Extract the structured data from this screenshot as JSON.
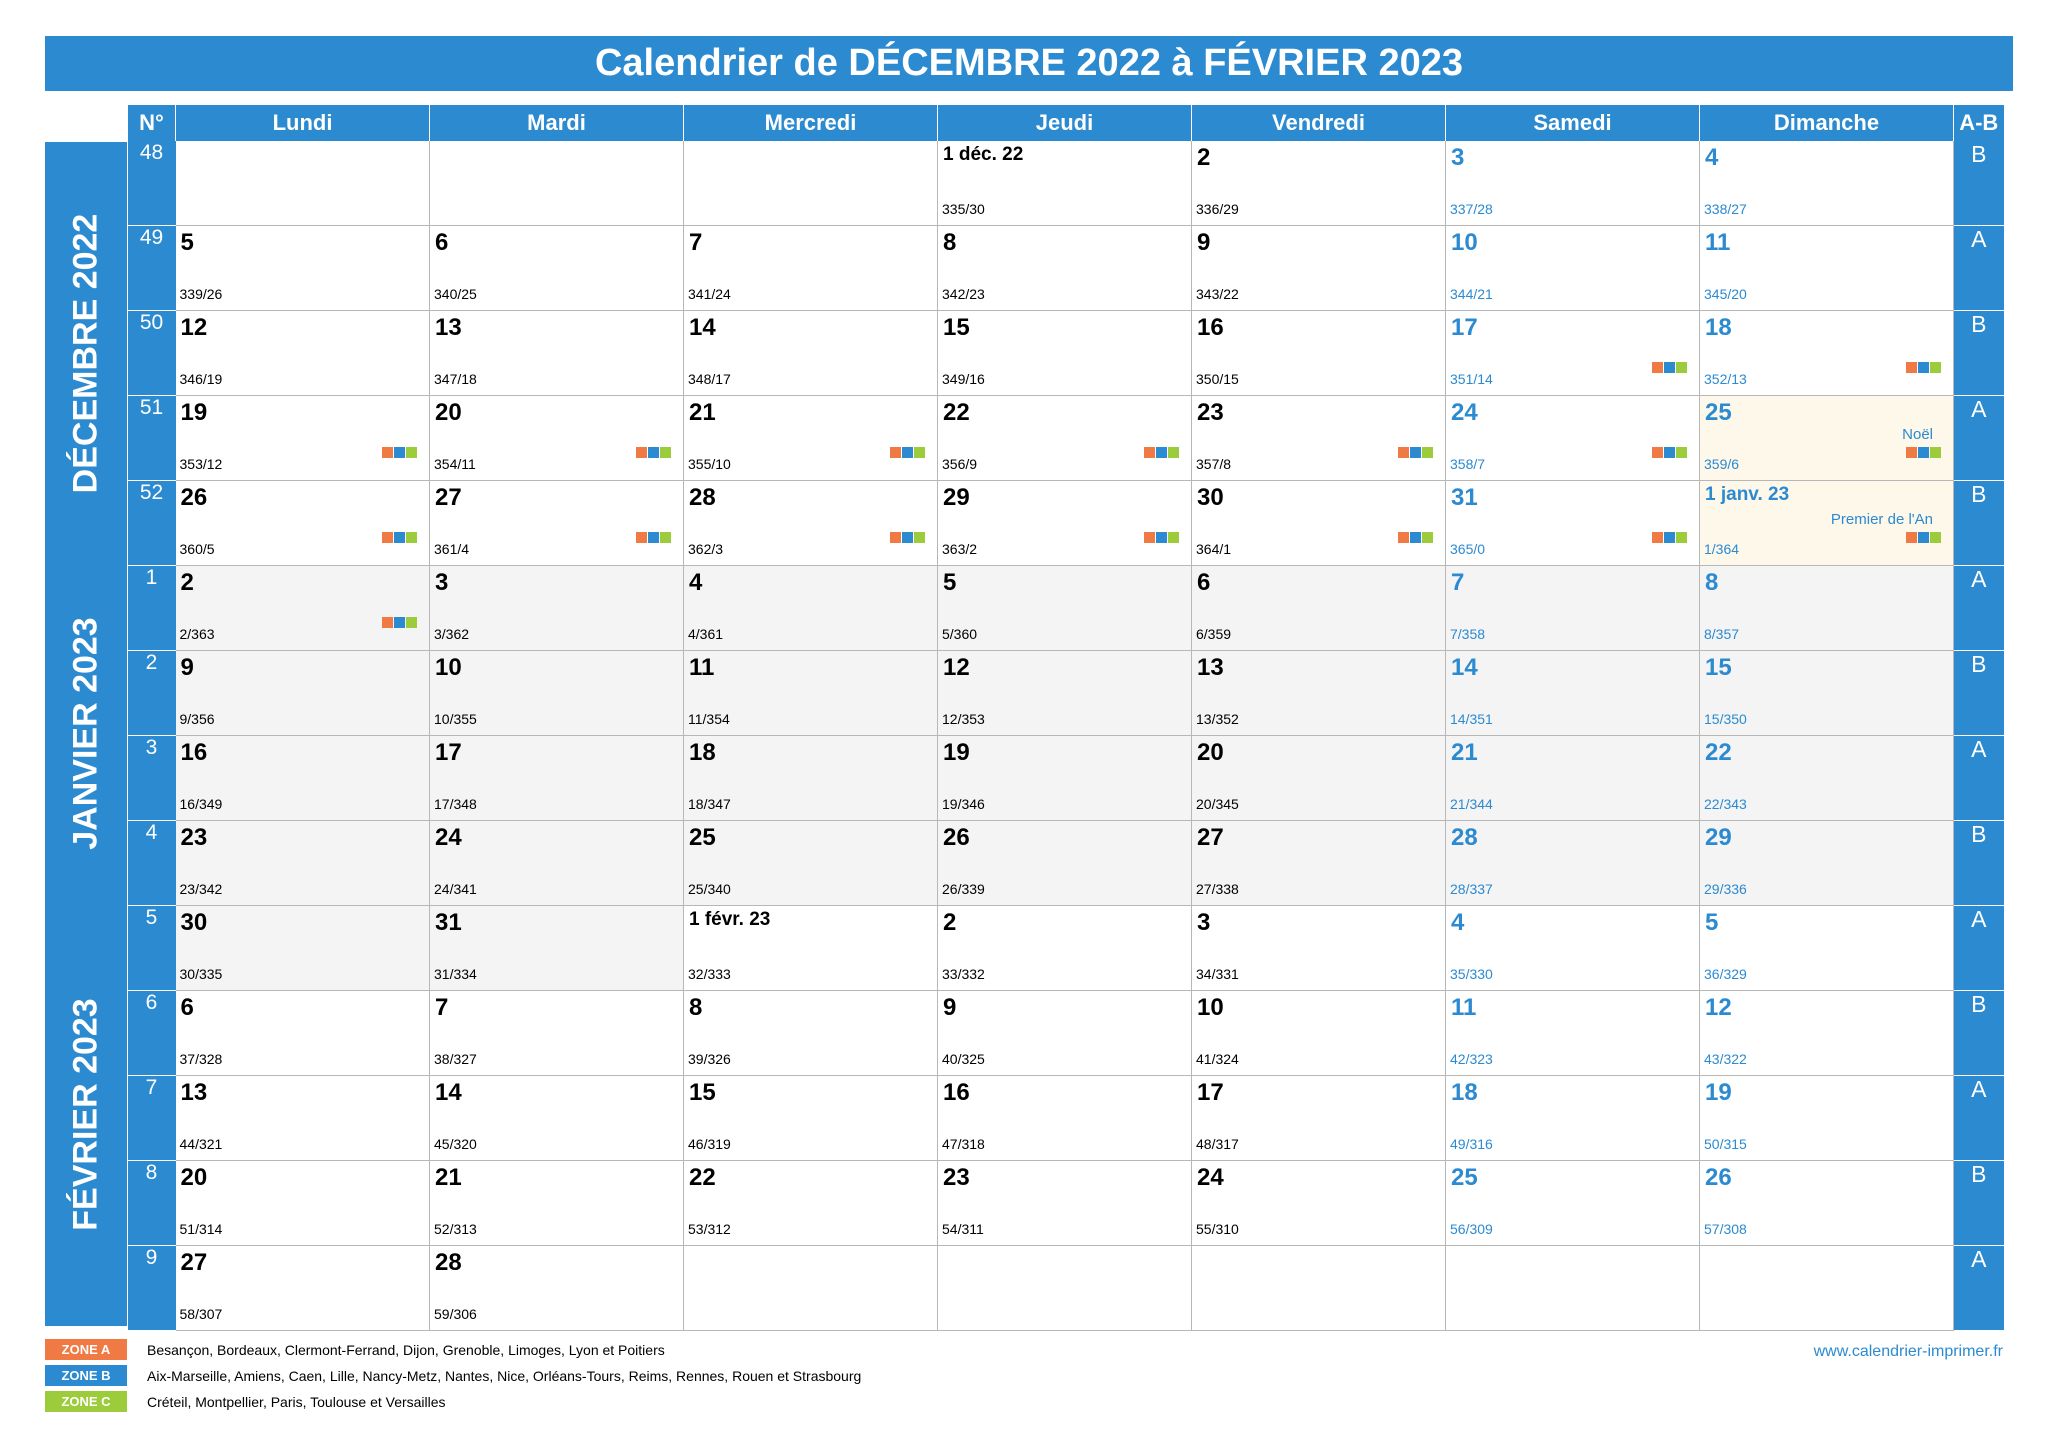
{
  "title": "Calendrier de DÉCEMBRE 2022 à FÉVRIER 2023",
  "headers": {
    "num": "N°",
    "days": [
      "Lundi",
      "Mardi",
      "Mercredi",
      "Jeudi",
      "Vendredi",
      "Samedi",
      "Dimanche"
    ],
    "ab": "A-B"
  },
  "months": [
    "DÉCEMBRE 2022",
    "JANVIER 2023",
    "FÉVRIER 2023"
  ],
  "weeks": [
    {
      "num": "48",
      "ab": "B",
      "days": [
        null,
        null,
        null,
        {
          "d": "1 déc. 22",
          "c": "335/30",
          "first": true
        },
        {
          "d": "2",
          "c": "336/29"
        },
        {
          "d": "3",
          "c": "337/28"
        },
        {
          "d": "4",
          "c": "338/27"
        }
      ]
    },
    {
      "num": "49",
      "ab": "A",
      "days": [
        {
          "d": "5",
          "c": "339/26"
        },
        {
          "d": "6",
          "c": "340/25"
        },
        {
          "d": "7",
          "c": "341/24"
        },
        {
          "d": "8",
          "c": "342/23"
        },
        {
          "d": "9",
          "c": "343/22"
        },
        {
          "d": "10",
          "c": "344/21"
        },
        {
          "d": "11",
          "c": "345/20"
        }
      ]
    },
    {
      "num": "50",
      "ab": "B",
      "days": [
        {
          "d": "12",
          "c": "346/19"
        },
        {
          "d": "13",
          "c": "347/18"
        },
        {
          "d": "14",
          "c": "348/17"
        },
        {
          "d": "15",
          "c": "349/16"
        },
        {
          "d": "16",
          "c": "350/15"
        },
        {
          "d": "17",
          "c": "351/14",
          "z": true
        },
        {
          "d": "18",
          "c": "352/13",
          "z": true
        }
      ]
    },
    {
      "num": "51",
      "ab": "A",
      "days": [
        {
          "d": "19",
          "c": "353/12",
          "z": true
        },
        {
          "d": "20",
          "c": "354/11",
          "z": true
        },
        {
          "d": "21",
          "c": "355/10",
          "z": true
        },
        {
          "d": "22",
          "c": "356/9",
          "z": true
        },
        {
          "d": "23",
          "c": "357/8",
          "z": true
        },
        {
          "d": "24",
          "c": "358/7",
          "z": true
        },
        {
          "d": "25",
          "c": "359/6",
          "z": true,
          "h": "Noël"
        }
      ]
    },
    {
      "num": "52",
      "ab": "B",
      "days": [
        {
          "d": "26",
          "c": "360/5",
          "z": true
        },
        {
          "d": "27",
          "c": "361/4",
          "z": true
        },
        {
          "d": "28",
          "c": "362/3",
          "z": true
        },
        {
          "d": "29",
          "c": "363/2",
          "z": true
        },
        {
          "d": "30",
          "c": "364/1",
          "z": true
        },
        {
          "d": "31",
          "c": "365/0",
          "z": true
        },
        {
          "d": "1 janv. 23",
          "c": "1/364",
          "z": true,
          "h": "Premier de l'An",
          "first": true
        }
      ]
    },
    {
      "num": "1",
      "ab": "A",
      "days": [
        {
          "d": "2",
          "c": "2/363",
          "z": true
        },
        {
          "d": "3",
          "c": "3/362"
        },
        {
          "d": "4",
          "c": "4/361"
        },
        {
          "d": "5",
          "c": "5/360"
        },
        {
          "d": "6",
          "c": "6/359"
        },
        {
          "d": "7",
          "c": "7/358"
        },
        {
          "d": "8",
          "c": "8/357"
        }
      ]
    },
    {
      "num": "2",
      "ab": "B",
      "days": [
        {
          "d": "9",
          "c": "9/356"
        },
        {
          "d": "10",
          "c": "10/355"
        },
        {
          "d": "11",
          "c": "11/354"
        },
        {
          "d": "12",
          "c": "12/353"
        },
        {
          "d": "13",
          "c": "13/352"
        },
        {
          "d": "14",
          "c": "14/351"
        },
        {
          "d": "15",
          "c": "15/350"
        }
      ]
    },
    {
      "num": "3",
      "ab": "A",
      "days": [
        {
          "d": "16",
          "c": "16/349"
        },
        {
          "d": "17",
          "c": "17/348"
        },
        {
          "d": "18",
          "c": "18/347"
        },
        {
          "d": "19",
          "c": "19/346"
        },
        {
          "d": "20",
          "c": "20/345"
        },
        {
          "d": "21",
          "c": "21/344"
        },
        {
          "d": "22",
          "c": "22/343"
        }
      ]
    },
    {
      "num": "4",
      "ab": "B",
      "days": [
        {
          "d": "23",
          "c": "23/342"
        },
        {
          "d": "24",
          "c": "24/341"
        },
        {
          "d": "25",
          "c": "25/340"
        },
        {
          "d": "26",
          "c": "26/339"
        },
        {
          "d": "27",
          "c": "27/338"
        },
        {
          "d": "28",
          "c": "28/337"
        },
        {
          "d": "29",
          "c": "29/336"
        }
      ]
    },
    {
      "num": "5",
      "ab": "A",
      "days": [
        {
          "d": "30",
          "c": "30/335"
        },
        {
          "d": "31",
          "c": "31/334"
        },
        {
          "d": "1 févr. 23",
          "c": "32/333",
          "first": true
        },
        {
          "d": "2",
          "c": "33/332"
        },
        {
          "d": "3",
          "c": "34/331"
        },
        {
          "d": "4",
          "c": "35/330"
        },
        {
          "d": "5",
          "c": "36/329"
        }
      ]
    },
    {
      "num": "6",
      "ab": "B",
      "days": [
        {
          "d": "6",
          "c": "37/328"
        },
        {
          "d": "7",
          "c": "38/327"
        },
        {
          "d": "8",
          "c": "39/326"
        },
        {
          "d": "9",
          "c": "40/325"
        },
        {
          "d": "10",
          "c": "41/324"
        },
        {
          "d": "11",
          "c": "42/323"
        },
        {
          "d": "12",
          "c": "43/322"
        }
      ]
    },
    {
      "num": "7",
      "ab": "A",
      "days": [
        {
          "d": "13",
          "c": "44/321"
        },
        {
          "d": "14",
          "c": "45/320"
        },
        {
          "d": "15",
          "c": "46/319"
        },
        {
          "d": "16",
          "c": "47/318"
        },
        {
          "d": "17",
          "c": "48/317"
        },
        {
          "d": "18",
          "c": "49/316"
        },
        {
          "d": "19",
          "c": "50/315"
        }
      ]
    },
    {
      "num": "8",
      "ab": "B",
      "days": [
        {
          "d": "20",
          "c": "51/314"
        },
        {
          "d": "21",
          "c": "52/313"
        },
        {
          "d": "22",
          "c": "53/312"
        },
        {
          "d": "23",
          "c": "54/311"
        },
        {
          "d": "24",
          "c": "55/310"
        },
        {
          "d": "25",
          "c": "56/309"
        },
        {
          "d": "26",
          "c": "57/308"
        }
      ]
    },
    {
      "num": "9",
      "ab": "A",
      "days": [
        {
          "d": "27",
          "c": "58/307"
        },
        {
          "d": "28",
          "c": "59/306"
        },
        null,
        null,
        null,
        null,
        null
      ]
    }
  ],
  "legend": [
    {
      "tag": "ZONE A",
      "color": "#ef7a44",
      "text": "Besançon, Bordeaux, Clermont-Ferrand, Dijon, Grenoble, Limoges, Lyon et Poitiers"
    },
    {
      "tag": "ZONE B",
      "color": "#2b8ad0",
      "text": "Aix-Marseille, Amiens, Caen, Lille, Nancy-Metz, Nantes, Nice, Orléans-Tours, Reims, Rennes, Rouen et Strasbourg"
    },
    {
      "tag": "ZONE C",
      "color": "#9ccb3b",
      "text": "Créteil, Montpellier, Paris, Toulouse et Versailles"
    }
  ],
  "website": "www.calendrier-imprimer.fr",
  "colors": {
    "accent": "#2b8ad0",
    "zone_a": "#ef7a44",
    "zone_b": "#2b8ad0",
    "zone_c": "#9ccb3b"
  }
}
